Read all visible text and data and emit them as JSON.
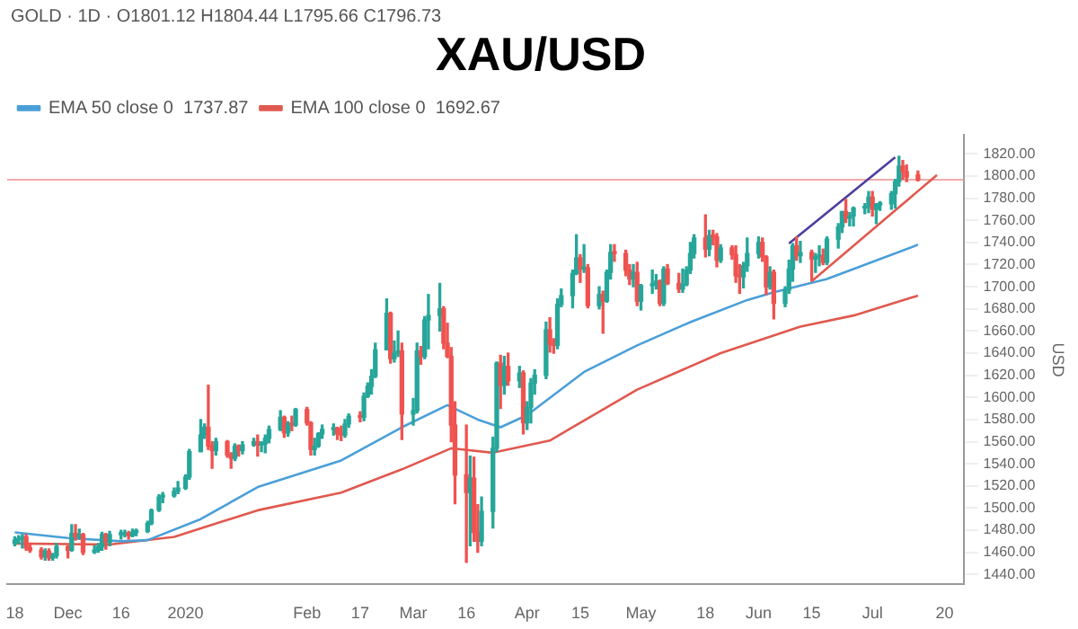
{
  "chart_data": {
    "type": "candlestick",
    "title": "XAU/USD",
    "ylabel": "USD",
    "annotations": [
      "GOLD · 1D · O1801.12 H1804.44 L1795.66 C1796.73"
    ],
    "x": [
      "2019-11-18",
      "2019-11-19",
      "2019-11-20",
      "2019-11-21",
      "2019-11-22",
      "2019-11-25",
      "2019-11-26",
      "2019-11-27",
      "2019-11-28",
      "2019-11-29",
      "2019-12-02",
      "2019-12-03",
      "2019-12-04",
      "2019-12-05",
      "2019-12-06",
      "2019-12-09",
      "2019-12-10",
      "2019-12-11",
      "2019-12-12",
      "2019-12-13",
      "2019-12-16",
      "2019-12-17",
      "2019-12-18",
      "2019-12-19",
      "2019-12-20",
      "2019-12-23",
      "2019-12-24",
      "2019-12-26",
      "2019-12-27",
      "2019-12-30",
      "2019-12-31",
      "2020-01-02",
      "2020-01-03",
      "2020-01-06",
      "2020-01-07",
      "2020-01-08",
      "2020-01-09",
      "2020-01-10",
      "2020-01-13",
      "2020-01-14",
      "2020-01-15",
      "2020-01-16",
      "2020-01-17",
      "2020-01-20",
      "2020-01-21",
      "2020-01-22",
      "2020-01-23",
      "2020-01-24",
      "2020-01-27",
      "2020-01-28",
      "2020-01-29",
      "2020-01-30",
      "2020-01-31",
      "2020-02-03",
      "2020-02-04",
      "2020-02-05",
      "2020-02-06",
      "2020-02-07",
      "2020-02-10",
      "2020-02-11",
      "2020-02-12",
      "2020-02-13",
      "2020-02-14",
      "2020-02-17",
      "2020-02-18",
      "2020-02-19",
      "2020-02-20",
      "2020-02-21",
      "2020-02-24",
      "2020-02-25",
      "2020-02-26",
      "2020-02-27",
      "2020-02-28",
      "2020-03-02",
      "2020-03-03",
      "2020-03-04",
      "2020-03-05",
      "2020-03-06",
      "2020-03-09",
      "2020-03-10",
      "2020-03-11",
      "2020-03-12",
      "2020-03-13",
      "2020-03-16",
      "2020-03-17",
      "2020-03-18",
      "2020-03-19",
      "2020-03-20",
      "2020-03-23",
      "2020-03-24",
      "2020-03-25",
      "2020-03-26",
      "2020-03-27",
      "2020-03-30",
      "2020-03-31",
      "2020-04-01",
      "2020-04-02",
      "2020-04-03",
      "2020-04-06",
      "2020-04-07",
      "2020-04-08",
      "2020-04-09",
      "2020-04-10",
      "2020-04-13",
      "2020-04-14",
      "2020-04-15",
      "2020-04-16",
      "2020-04-17",
      "2020-04-20",
      "2020-04-21",
      "2020-04-22",
      "2020-04-23",
      "2020-04-24",
      "2020-04-27",
      "2020-04-28",
      "2020-04-29",
      "2020-04-30",
      "2020-05-01",
      "2020-05-04",
      "2020-05-05",
      "2020-05-06",
      "2020-05-07",
      "2020-05-08",
      "2020-05-11",
      "2020-05-12",
      "2020-05-13",
      "2020-05-14",
      "2020-05-15",
      "2020-05-18",
      "2020-05-19",
      "2020-05-20",
      "2020-05-21",
      "2020-05-22",
      "2020-05-25",
      "2020-05-26",
      "2020-05-27",
      "2020-05-28",
      "2020-05-29",
      "2020-06-01",
      "2020-06-02",
      "2020-06-03",
      "2020-06-04",
      "2020-06-05",
      "2020-06-08",
      "2020-06-09",
      "2020-06-10",
      "2020-06-11",
      "2020-06-12",
      "2020-06-15",
      "2020-06-16",
      "2020-06-17",
      "2020-06-18",
      "2020-06-19",
      "2020-06-22",
      "2020-06-23",
      "2020-06-24",
      "2020-06-25",
      "2020-06-26",
      "2020-06-29",
      "2020-06-30",
      "2020-07-01",
      "2020-07-02",
      "2020-07-03",
      "2020-07-06",
      "2020-07-07",
      "2020-07-08",
      "2020-07-09",
      "2020-07-10",
      "2020-07-13"
    ],
    "ohlc": [
      [
        1468,
        1474,
        1466,
        1471
      ],
      [
        1471,
        1475,
        1468,
        1472
      ],
      [
        1472,
        1476,
        1464,
        1474
      ],
      [
        1474,
        1476,
        1462,
        1464
      ],
      [
        1464,
        1468,
        1460,
        1462
      ],
      [
        1462,
        1464,
        1454,
        1456
      ],
      [
        1456,
        1463,
        1453,
        1461
      ],
      [
        1461,
        1463,
        1453,
        1455
      ],
      [
        1455,
        1459,
        1453,
        1457
      ],
      [
        1457,
        1468,
        1455,
        1465
      ],
      [
        1465,
        1466,
        1455,
        1462
      ],
      [
        1462,
        1485,
        1461,
        1477
      ],
      [
        1477,
        1485,
        1471,
        1474
      ],
      [
        1474,
        1481,
        1472,
        1476
      ],
      [
        1476,
        1477,
        1458,
        1460
      ],
      [
        1460,
        1466,
        1459,
        1462
      ],
      [
        1462,
        1468,
        1460,
        1465
      ],
      [
        1465,
        1478,
        1462,
        1476
      ],
      [
        1476,
        1477,
        1463,
        1469
      ],
      [
        1469,
        1479,
        1466,
        1476
      ],
      [
        1476,
        1480,
        1472,
        1476
      ],
      [
        1476,
        1480,
        1474,
        1477
      ],
      [
        1477,
        1479,
        1472,
        1475
      ],
      [
        1475,
        1481,
        1474,
        1478
      ],
      [
        1478,
        1481,
        1475,
        1479
      ],
      [
        1479,
        1488,
        1478,
        1486
      ],
      [
        1486,
        1499,
        1485,
        1498
      ],
      [
        1498,
        1512,
        1497,
        1510
      ],
      [
        1510,
        1514,
        1505,
        1511
      ],
      [
        1511,
        1518,
        1510,
        1515
      ],
      [
        1515,
        1524,
        1513,
        1518
      ],
      [
        1518,
        1530,
        1517,
        1528
      ],
      [
        1528,
        1553,
        1526,
        1551
      ],
      [
        1551,
        1580,
        1551,
        1566
      ],
      [
        1566,
        1576,
        1563,
        1573
      ],
      [
        1573,
        1611,
        1553,
        1556
      ],
      [
        1556,
        1560,
        1536,
        1552
      ],
      [
        1552,
        1563,
        1548,
        1560
      ],
      [
        1560,
        1561,
        1546,
        1548
      ],
      [
        1548,
        1550,
        1536,
        1545
      ],
      [
        1545,
        1558,
        1543,
        1556
      ],
      [
        1556,
        1557,
        1547,
        1552
      ],
      [
        1552,
        1560,
        1549,
        1557
      ],
      [
        1557,
        1563,
        1556,
        1560
      ],
      [
        1560,
        1566,
        1547,
        1557
      ],
      [
        1557,
        1560,
        1551,
        1558
      ],
      [
        1558,
        1566,
        1550,
        1563
      ],
      [
        1563,
        1574,
        1559,
        1571
      ],
      [
        1571,
        1588,
        1570,
        1582
      ],
      [
        1582,
        1583,
        1564,
        1568
      ],
      [
        1568,
        1578,
        1565,
        1576
      ],
      [
        1576,
        1583,
        1570,
        1575
      ],
      [
        1575,
        1590,
        1574,
        1589
      ],
      [
        1589,
        1591,
        1575,
        1577
      ],
      [
        1577,
        1578,
        1548,
        1553
      ],
      [
        1553,
        1563,
        1548,
        1556
      ],
      [
        1556,
        1568,
        1555,
        1567
      ],
      [
        1567,
        1575,
        1563,
        1571
      ],
      [
        1571,
        1576,
        1566,
        1572
      ],
      [
        1572,
        1573,
        1562,
        1567
      ],
      [
        1567,
        1574,
        1561,
        1566
      ],
      [
        1566,
        1580,
        1564,
        1576
      ],
      [
        1576,
        1585,
        1573,
        1583
      ],
      [
        1583,
        1587,
        1578,
        1582
      ],
      [
        1582,
        1604,
        1579,
        1601
      ],
      [
        1601,
        1613,
        1600,
        1610
      ],
      [
        1610,
        1625,
        1603,
        1619
      ],
      [
        1619,
        1649,
        1618,
        1643
      ],
      [
        1643,
        1689,
        1643,
        1676
      ],
      [
        1676,
        1677,
        1631,
        1635
      ],
      [
        1635,
        1651,
        1632,
        1640
      ],
      [
        1640,
        1660,
        1637,
        1642
      ],
      [
        1642,
        1649,
        1562,
        1585
      ],
      [
        1585,
        1599,
        1575,
        1588
      ],
      [
        1588,
        1649,
        1586,
        1642
      ],
      [
        1642,
        1646,
        1630,
        1637
      ],
      [
        1637,
        1673,
        1635,
        1670
      ],
      [
        1670,
        1693,
        1644,
        1674
      ],
      [
        1674,
        1703,
        1660,
        1680
      ],
      [
        1680,
        1682,
        1644,
        1649
      ],
      [
        1649,
        1667,
        1636,
        1637
      ],
      [
        1637,
        1645,
        1560,
        1575
      ],
      [
        1575,
        1596,
        1504,
        1530
      ],
      [
        1530,
        1575,
        1451,
        1514
      ],
      [
        1514,
        1547,
        1466,
        1527
      ],
      [
        1527,
        1546,
        1470,
        1478
      ],
      [
        1478,
        1503,
        1460,
        1470
      ],
      [
        1470,
        1510,
        1466,
        1497
      ],
      [
        1497,
        1564,
        1482,
        1554
      ],
      [
        1554,
        1632,
        1551,
        1631
      ],
      [
        1631,
        1638,
        1590,
        1611
      ],
      [
        1611,
        1637,
        1603,
        1628
      ],
      [
        1628,
        1640,
        1611,
        1615
      ],
      [
        1615,
        1628,
        1609,
        1622
      ],
      [
        1622,
        1624,
        1567,
        1577
      ],
      [
        1577,
        1596,
        1571,
        1591
      ],
      [
        1591,
        1617,
        1577,
        1613
      ],
      [
        1613,
        1625,
        1603,
        1620
      ],
      [
        1620,
        1668,
        1617,
        1661
      ],
      [
        1661,
        1672,
        1641,
        1648
      ],
      [
        1648,
        1653,
        1640,
        1647
      ],
      [
        1647,
        1689,
        1644,
        1684
      ],
      [
        1684,
        1698,
        1682,
        1692
      ],
      [
        1692,
        1715,
        1681,
        1712
      ],
      [
        1712,
        1747,
        1711,
        1726
      ],
      [
        1726,
        1729,
        1704,
        1716
      ],
      [
        1716,
        1738,
        1713,
        1717
      ],
      [
        1717,
        1720,
        1681,
        1683
      ],
      [
        1683,
        1700,
        1680,
        1693
      ],
      [
        1693,
        1696,
        1658,
        1687
      ],
      [
        1687,
        1715,
        1686,
        1713
      ],
      [
        1713,
        1738,
        1707,
        1731
      ],
      [
        1731,
        1738,
        1723,
        1730
      ],
      [
        1730,
        1733,
        1710,
        1715
      ],
      [
        1715,
        1720,
        1702,
        1707
      ],
      [
        1707,
        1720,
        1700,
        1713
      ],
      [
        1713,
        1722,
        1683,
        1687
      ],
      [
        1687,
        1702,
        1679,
        1701
      ],
      [
        1701,
        1715,
        1694,
        1702
      ],
      [
        1702,
        1711,
        1698,
        1705
      ],
      [
        1705,
        1706,
        1683,
        1685
      ],
      [
        1685,
        1718,
        1683,
        1716
      ],
      [
        1716,
        1720,
        1702,
        1703
      ],
      [
        1703,
        1712,
        1695,
        1698
      ],
      [
        1698,
        1716,
        1695,
        1702
      ],
      [
        1702,
        1718,
        1701,
        1715
      ],
      [
        1715,
        1740,
        1712,
        1730
      ],
      [
        1730,
        1747,
        1726,
        1744
      ],
      [
        1744,
        1765,
        1727,
        1734
      ],
      [
        1734,
        1751,
        1728,
        1746
      ],
      [
        1746,
        1751,
        1738,
        1745
      ],
      [
        1745,
        1748,
        1718,
        1724
      ],
      [
        1724,
        1738,
        1722,
        1735
      ],
      [
        1735,
        1737,
        1725,
        1729
      ],
      [
        1729,
        1737,
        1704,
        1710
      ],
      [
        1710,
        1720,
        1694,
        1709
      ],
      [
        1709,
        1722,
        1699,
        1719
      ],
      [
        1719,
        1744,
        1714,
        1730
      ],
      [
        1730,
        1745,
        1726,
        1740
      ],
      [
        1740,
        1744,
        1723,
        1727
      ],
      [
        1727,
        1728,
        1693,
        1700
      ],
      [
        1700,
        1718,
        1698,
        1713
      ],
      [
        1713,
        1715,
        1671,
        1685
      ],
      [
        1685,
        1700,
        1682,
        1697
      ],
      [
        1697,
        1724,
        1694,
        1716
      ],
      [
        1716,
        1739,
        1705,
        1737
      ],
      [
        1737,
        1745,
        1724,
        1728
      ],
      [
        1728,
        1741,
        1722,
        1731
      ],
      [
        1731,
        1733,
        1705,
        1725
      ],
      [
        1725,
        1730,
        1713,
        1727
      ],
      [
        1727,
        1737,
        1719,
        1728
      ],
      [
        1728,
        1734,
        1720,
        1722
      ],
      [
        1722,
        1745,
        1720,
        1743
      ],
      [
        1743,
        1757,
        1735,
        1754
      ],
      [
        1754,
        1768,
        1749,
        1768
      ],
      [
        1768,
        1779,
        1758,
        1762
      ],
      [
        1762,
        1767,
        1755,
        1764
      ],
      [
        1764,
        1772,
        1755,
        1771
      ],
      [
        1771,
        1775,
        1766,
        1772
      ],
      [
        1772,
        1786,
        1767,
        1781
      ],
      [
        1781,
        1786,
        1764,
        1770
      ],
      [
        1770,
        1775,
        1757,
        1774
      ],
      [
        1774,
        1777,
        1769,
        1775
      ],
      [
        1775,
        1786,
        1770,
        1784
      ],
      [
        1784,
        1797,
        1771,
        1795
      ],
      [
        1795,
        1818,
        1791,
        1809
      ],
      [
        1809,
        1814,
        1797,
        1804
      ],
      [
        1804,
        1810,
        1795,
        1799
      ],
      [
        1801.12,
        1804.44,
        1795.66,
        1796.73
      ]
    ],
    "series": [
      {
        "type": "line",
        "name": "EMA 50 close 0  1737.87",
        "color": "#4a9fd8",
        "x": [
          "2019-11-18",
          "2019-12-02",
          "2019-12-16",
          "2019-12-23",
          "2020-01-06",
          "2020-01-21",
          "2020-02-12",
          "2020-02-28",
          "2020-03-11",
          "2020-03-19",
          "2020-03-25",
          "2020-04-01",
          "2020-04-16",
          "2020-04-30",
          "2020-05-14",
          "2020-05-29",
          "2020-06-05",
          "2020-06-19",
          "2020-07-13"
        ],
        "values": [
          1478,
          1473,
          1470,
          1471,
          1490,
          1519,
          1543,
          1573,
          1593,
          1580,
          1573,
          1584,
          1623,
          1647,
          1668,
          1688,
          1695,
          1707,
          1738
        ]
      },
      {
        "type": "line",
        "name": "EMA 100 close 0  1692.67",
        "color": "#e0594f",
        "x": [
          "2019-11-18",
          "2019-12-13",
          "2019-12-30",
          "2020-01-21",
          "2020-02-12",
          "2020-02-28",
          "2020-03-12",
          "2020-03-23",
          "2020-04-07",
          "2020-04-12",
          "2020-04-30",
          "2020-05-22",
          "2020-06-12",
          "2020-06-26",
          "2020-07-13"
        ],
        "values": [
          1468,
          1467,
          1474,
          1498,
          1514,
          1535,
          1554,
          1550,
          1561,
          1571,
          1607,
          1640,
          1664,
          1674,
          1692
        ]
      },
      {
        "type": "line",
        "color": "#4b3f9e",
        "x": [
          "2020-06-09",
          "2020-07-07"
        ],
        "values": [
          1739,
          1817
        ]
      },
      {
        "type": "line",
        "color": "#e0594f",
        "x": [
          "2020-06-15",
          "2020-07-18"
        ],
        "values": [
          1705,
          1801
        ]
      }
    ],
    "ref_lines": [
      {
        "axis": "y",
        "value": 1796.73,
        "color": "#f2a9a9"
      }
    ],
    "xlim": [
      "2019-11-16",
      "2020-07-25"
    ],
    "xticks": [
      {
        "value": "2019-11-18",
        "label": "18"
      },
      {
        "value": "2019-12-02",
        "label": "Dec"
      },
      {
        "value": "2019-12-16",
        "label": "16"
      },
      {
        "value": "2020-01-02",
        "label": "2020"
      },
      {
        "value": "2020-02-03",
        "label": "Feb"
      },
      {
        "value": "2020-02-17",
        "label": "17"
      },
      {
        "value": "2020-03-02",
        "label": "Mar"
      },
      {
        "value": "2020-03-16",
        "label": "16"
      },
      {
        "value": "2020-04-01",
        "label": "Apr"
      },
      {
        "value": "2020-04-15",
        "label": "15"
      },
      {
        "value": "2020-05-01",
        "label": "May"
      },
      {
        "value": "2020-05-18",
        "label": "18"
      },
      {
        "value": "2020-06-01",
        "label": "Jun"
      },
      {
        "value": "2020-06-15",
        "label": "15"
      },
      {
        "value": "2020-07-01",
        "label": "Jul"
      },
      {
        "value": "2020-07-20",
        "label": "20"
      }
    ],
    "ylim": [
      1431,
      1837
    ],
    "yticks": [
      {
        "value": 1440,
        "label": "1440.00"
      },
      {
        "value": 1460,
        "label": "1460.00"
      },
      {
        "value": 1480,
        "label": "1480.00"
      },
      {
        "value": 1500,
        "label": "1500.00"
      },
      {
        "value": 1520,
        "label": "1520.00"
      },
      {
        "value": 1540,
        "label": "1540.00"
      },
      {
        "value": 1560,
        "label": "1560.00"
      },
      {
        "value": 1580,
        "label": "1580.00"
      },
      {
        "value": 1600,
        "label": "1600.00"
      },
      {
        "value": 1620,
        "label": "1620.00"
      },
      {
        "value": 1640,
        "label": "1640.00"
      },
      {
        "value": 1660,
        "label": "1660.00"
      },
      {
        "value": 1680,
        "label": "1680.00"
      },
      {
        "value": 1700,
        "label": "1700.00"
      },
      {
        "value": 1720,
        "label": "1720.00"
      },
      {
        "value": 1740,
        "label": "1740.00"
      },
      {
        "value": 1760,
        "label": "1760.00"
      },
      {
        "value": 1780,
        "label": "1780.00"
      },
      {
        "value": 1800,
        "label": "1800.00"
      },
      {
        "value": 1820,
        "label": "1820.00"
      }
    ],
    "grid": false,
    "legend": "top left",
    "marker": "none",
    "line_style": "solid"
  }
}
